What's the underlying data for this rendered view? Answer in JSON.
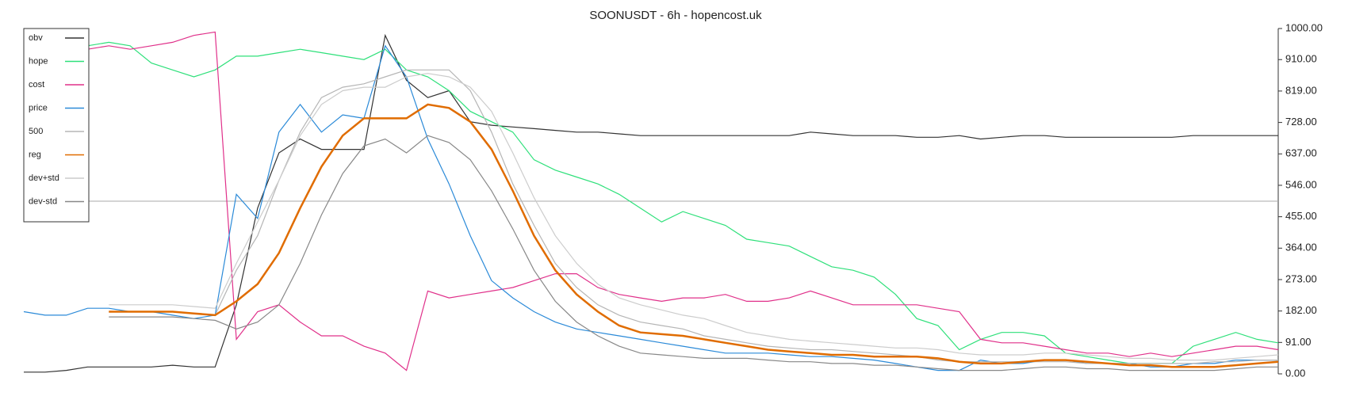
{
  "chart_data": {
    "type": "line",
    "title": "SOONUSDT - 6h - hopencost.uk",
    "ylim": [
      0,
      1000
    ],
    "yticks": [
      {
        "value": 0,
        "label": "0.00"
      },
      {
        "value": 91,
        "label": "91.00"
      },
      {
        "value": 182,
        "label": "182.00"
      },
      {
        "value": 273,
        "label": "273.00"
      },
      {
        "value": 364,
        "label": "364.00"
      },
      {
        "value": 455,
        "label": "455.00"
      },
      {
        "value": 546,
        "label": "546.00"
      },
      {
        "value": 637,
        "label": "637.00"
      },
      {
        "value": 728,
        "label": "728.00"
      },
      {
        "value": 819,
        "label": "819.00"
      },
      {
        "value": 910,
        "label": "910.00"
      },
      {
        "value": 1000,
        "label": "1000.00"
      }
    ],
    "reference_line": 500,
    "legend": "top-left",
    "series": [
      {
        "name": "obv",
        "color": "#333333",
        "values": [
          5,
          5,
          10,
          20,
          20,
          20,
          20,
          25,
          20,
          20,
          200,
          480,
          640,
          680,
          650,
          650,
          650,
          980,
          850,
          800,
          820,
          730,
          720,
          715,
          710,
          705,
          700,
          700,
          695,
          690,
          690,
          690,
          690,
          690,
          690,
          690,
          690,
          700,
          695,
          690,
          690,
          690,
          685,
          685,
          690,
          680,
          685,
          690,
          690,
          685,
          685,
          685,
          685,
          685,
          685,
          690,
          690,
          690,
          690,
          690
        ]
      },
      {
        "name": "hope",
        "color": "#2ee07a",
        "values": [
          null,
          null,
          null,
          950,
          960,
          950,
          900,
          880,
          860,
          880,
          920,
          920,
          930,
          940,
          930,
          920,
          910,
          940,
          880,
          860,
          820,
          760,
          730,
          700,
          620,
          590,
          570,
          550,
          520,
          480,
          440,
          470,
          450,
          430,
          390,
          380,
          370,
          340,
          310,
          300,
          280,
          230,
          160,
          140,
          70,
          100,
          120,
          120,
          110,
          60,
          50,
          40,
          30,
          30,
          30,
          80,
          100,
          120,
          100,
          90
        ]
      },
      {
        "name": "cost",
        "color": "#e0308a",
        "values": [
          null,
          null,
          null,
          940,
          950,
          940,
          950,
          960,
          980,
          990,
          100,
          180,
          200,
          150,
          110,
          110,
          80,
          60,
          10,
          240,
          220,
          230,
          240,
          250,
          270,
          290,
          290,
          250,
          230,
          220,
          210,
          220,
          220,
          230,
          210,
          210,
          220,
          240,
          220,
          200,
          200,
          200,
          200,
          190,
          180,
          100,
          90,
          90,
          80,
          70,
          60,
          60,
          50,
          60,
          50,
          60,
          70,
          80,
          80,
          70
        ]
      },
      {
        "name": "price",
        "color": "#2b8ad8",
        "values": [
          180,
          170,
          170,
          190,
          190,
          180,
          180,
          170,
          160,
          170,
          520,
          450,
          700,
          780,
          700,
          750,
          740,
          950,
          860,
          680,
          550,
          400,
          270,
          220,
          180,
          150,
          130,
          120,
          110,
          100,
          90,
          80,
          70,
          60,
          60,
          60,
          55,
          50,
          50,
          45,
          40,
          30,
          20,
          10,
          10,
          40,
          30,
          30,
          40,
          40,
          30,
          30,
          30,
          20,
          20,
          30,
          30,
          40,
          40,
          40
        ]
      },
      {
        "name": "500",
        "color": "#b5b5b5",
        "values": [
          null,
          null,
          null,
          null,
          180,
          180,
          180,
          180,
          175,
          170,
          300,
          400,
          560,
          700,
          800,
          830,
          840,
          860,
          880,
          880,
          880,
          820,
          700,
          550,
          430,
          320,
          250,
          200,
          170,
          150,
          140,
          130,
          110,
          100,
          90,
          80,
          75,
          70,
          70,
          65,
          60,
          55,
          50,
          40,
          35,
          35,
          35,
          35,
          35,
          35,
          30,
          30,
          30,
          30,
          30,
          30,
          35,
          35,
          40,
          40
        ]
      },
      {
        "name": "reg",
        "color": "#e06c00",
        "values": [
          null,
          null,
          null,
          null,
          180,
          180,
          180,
          180,
          175,
          170,
          210,
          260,
          350,
          480,
          600,
          690,
          740,
          740,
          740,
          780,
          770,
          730,
          650,
          530,
          400,
          300,
          230,
          180,
          140,
          120,
          115,
          110,
          100,
          90,
          80,
          70,
          65,
          60,
          55,
          55,
          50,
          50,
          50,
          45,
          35,
          30,
          30,
          35,
          40,
          40,
          35,
          30,
          25,
          25,
          20,
          20,
          20,
          25,
          30,
          35
        ]
      },
      {
        "name": "dev+std",
        "color": "#cccccc",
        "values": [
          null,
          null,
          null,
          null,
          200,
          200,
          200,
          200,
          195,
          190,
          320,
          440,
          560,
          690,
          780,
          820,
          830,
          830,
          860,
          870,
          860,
          830,
          760,
          640,
          510,
          400,
          320,
          260,
          220,
          200,
          185,
          170,
          160,
          140,
          120,
          110,
          100,
          95,
          90,
          85,
          80,
          75,
          75,
          70,
          60,
          55,
          55,
          55,
          60,
          60,
          55,
          50,
          45,
          45,
          40,
          40,
          40,
          45,
          50,
          55
        ]
      },
      {
        "name": "dev-std",
        "color": "#888888",
        "values": [
          null,
          null,
          null,
          null,
          165,
          165,
          165,
          165,
          160,
          155,
          130,
          150,
          200,
          320,
          460,
          580,
          660,
          680,
          640,
          690,
          670,
          620,
          530,
          420,
          300,
          210,
          150,
          110,
          80,
          60,
          55,
          50,
          45,
          45,
          45,
          40,
          35,
          35,
          30,
          30,
          25,
          25,
          20,
          15,
          10,
          10,
          10,
          15,
          20,
          20,
          15,
          15,
          10,
          10,
          10,
          10,
          10,
          15,
          20,
          20
        ]
      }
    ]
  }
}
